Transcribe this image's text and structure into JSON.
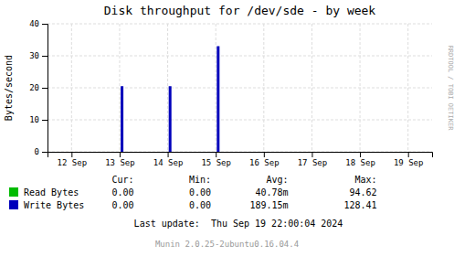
{
  "chart_data": {
    "type": "bar",
    "title": "Disk throughput for /dev/sde - by week",
    "ylabel": "Bytes/second",
    "x": [
      13.05,
      14.05,
      15.05
    ],
    "series": [
      {
        "name": "Read Bytes",
        "color": "#00bb00",
        "values": [
          null,
          null,
          null
        ]
      },
      {
        "name": "Write Bytes",
        "color": "#0000bb",
        "values": [
          20.5,
          20.5,
          33.0
        ]
      }
    ],
    "xlim": [
      11.5,
      19.5
    ],
    "xticks": [
      {
        "value": 12,
        "label": "12 Sep"
      },
      {
        "value": 13,
        "label": "13 Sep"
      },
      {
        "value": 14,
        "label": "14 Sep"
      },
      {
        "value": 15,
        "label": "15 Sep"
      },
      {
        "value": 16,
        "label": "16 Sep"
      },
      {
        "value": 17,
        "label": "17 Sep"
      },
      {
        "value": 18,
        "label": "18 Sep"
      },
      {
        "value": 19,
        "label": "19 Sep"
      }
    ],
    "ylim": [
      0,
      40
    ],
    "yticks": [
      0,
      10,
      20,
      30,
      40
    ],
    "grid": true,
    "table": {
      "columns": [
        "Cur:",
        "Min:",
        "Avg:",
        "Max:"
      ],
      "rows": [
        [
          "0.00",
          "0.00",
          "40.78m",
          "94.62"
        ],
        [
          "0.00",
          "0.00",
          "189.15m",
          "128.41"
        ]
      ]
    },
    "annotations": [
      "Last update:  Thu Sep 19 22:00:04 2024",
      "Munin 2.0.25-2ubuntu0.16.04.4",
      "RRDTOOL / TOBI OETIKER"
    ]
  }
}
